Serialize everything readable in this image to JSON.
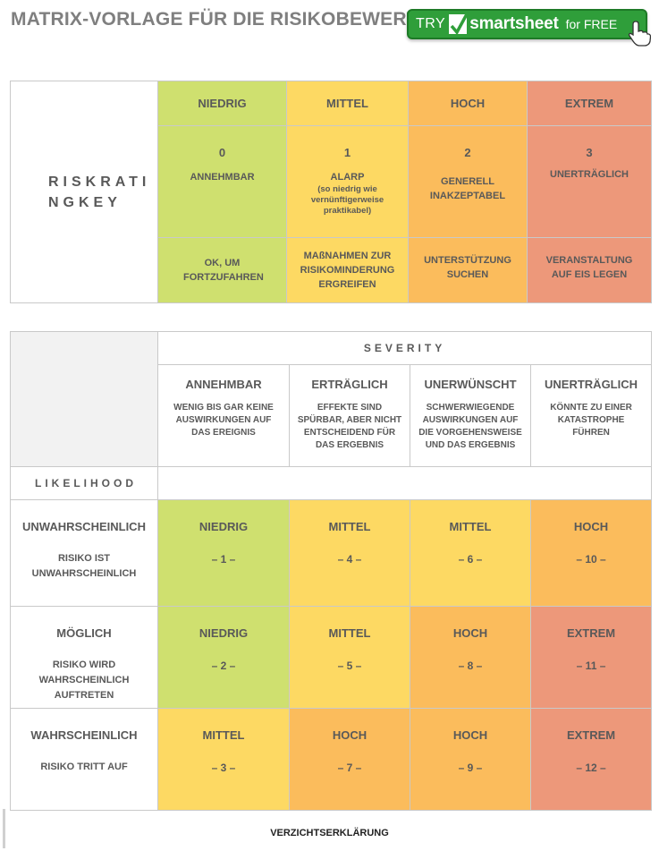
{
  "title": "MATRIX-VORLAGE FÜR DIE RISIKOBEWERTUNG",
  "promo": {
    "try": "TRY",
    "brand": "smartsheet",
    "free": "for FREE"
  },
  "rating_key": {
    "label_line1": "RISKRATI",
    "label_line2": "NGKEY",
    "levels": [
      {
        "name": "NIEDRIG",
        "number": "0",
        "label": "ANNEHMBAR",
        "sub": "",
        "action": "OK, UM FORTZUFAHREN"
      },
      {
        "name": "MITTEL",
        "number": "1",
        "label": "ALARP",
        "sub": "(so niedrig wie vernünftigerweise praktikabel)",
        "action": "MAßNAHMEN ZUR RISIKOMINDERUNG ERGREIFEN"
      },
      {
        "name": "HOCH",
        "number": "2",
        "label": "GENERELL INAKZEPTABEL",
        "sub": "",
        "action": "UNTERSTÜTZUNG SUCHEN"
      },
      {
        "name": "EXTREM",
        "number": "3",
        "label": "UNERTRÄGLICH",
        "sub": "",
        "action": "VERANSTALTUNG AUF EIS LEGEN"
      }
    ]
  },
  "matrix": {
    "severity_label": "SEVERITY",
    "likelihood_label": "LIKELIHOOD",
    "severity": [
      {
        "name": "ANNEHMBAR",
        "desc": "WENIG BIS GAR KEINE AUSWIRKUNGEN AUF DAS EREIGNIS"
      },
      {
        "name": "ERTRÄGLICH",
        "desc": "EFFEKTE SIND SPÜRBAR, ABER NICHT ENTSCHEIDEND FÜR DAS ERGEBNIS"
      },
      {
        "name": "UNERWÜNSCHT",
        "desc": "SCHWERWIEGENDE AUSWIRKUNGEN AUF DIE VORGEHENSWEISE UND DAS ERGEBNIS"
      },
      {
        "name": "UNERTRÄGLICH",
        "desc": "KÖNNTE ZU EINER KATASTROPHE FÜHREN"
      }
    ],
    "rows": [
      {
        "name": "UNWAHRSCHEINLICH",
        "desc": "RISIKO IST UNWAHRSCHEINLICH",
        "cells": [
          {
            "level": "NIEDRIG",
            "num": "– 1 –"
          },
          {
            "level": "MITTEL",
            "num": "– 4 –"
          },
          {
            "level": "MITTEL",
            "num": "– 6 –"
          },
          {
            "level": "HOCH",
            "num": "– 10 –"
          }
        ]
      },
      {
        "name": "MÖGLICH",
        "desc": "RISIKO WIRD WAHRSCHEINLICH AUFTRETEN",
        "cells": [
          {
            "level": "NIEDRIG",
            "num": "– 2 –"
          },
          {
            "level": "MITTEL",
            "num": "– 5 –"
          },
          {
            "level": "HOCH",
            "num": "– 8 –"
          },
          {
            "level": "EXTREM",
            "num": "– 11 –"
          }
        ]
      },
      {
        "name": "WAHRSCHEINLICH",
        "desc": "RISIKO TRITT AUF",
        "cells": [
          {
            "level": "MITTEL",
            "num": "– 3 –"
          },
          {
            "level": "HOCH",
            "num": "– 7 –"
          },
          {
            "level": "HOCH",
            "num": "– 9 –"
          },
          {
            "level": "EXTREM",
            "num": "– 12 –"
          }
        ]
      }
    ]
  },
  "colors": {
    "niedrig": "#cfe06f",
    "mittel": "#fdd963",
    "hoch": "#fbbc5c",
    "extrem": "#ed987a",
    "promo": "#2f9e3a"
  },
  "footer": "VERZICHTSERKLÄRUNG"
}
